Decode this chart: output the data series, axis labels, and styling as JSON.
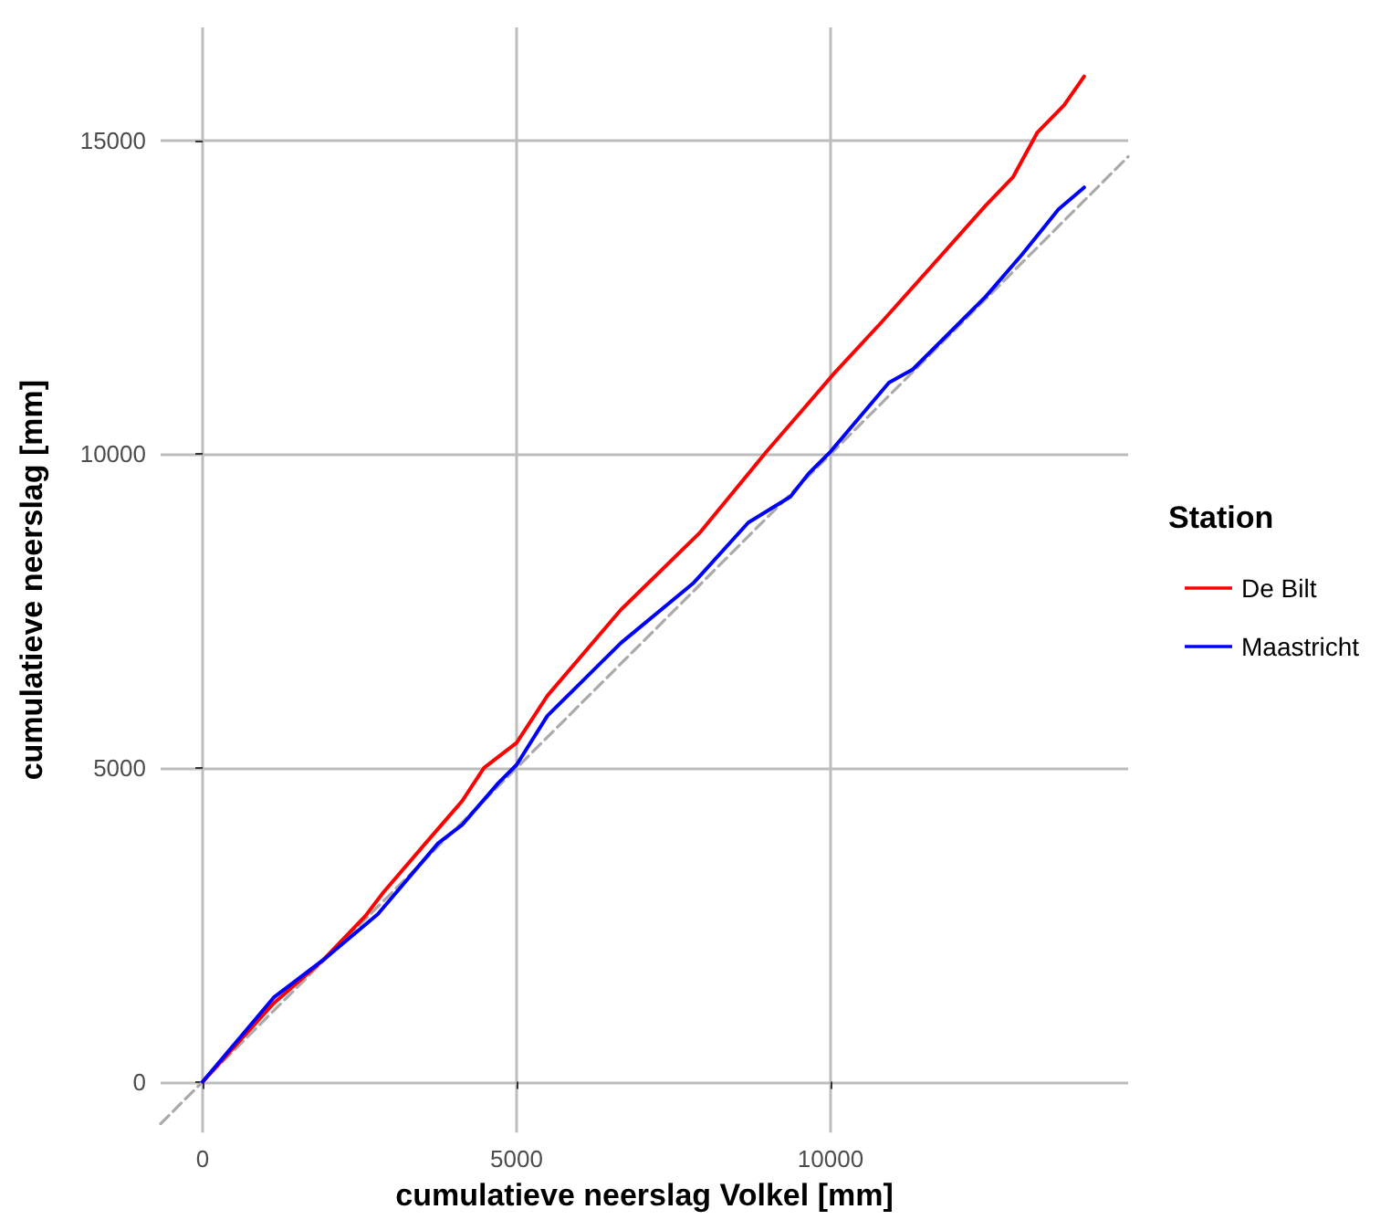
{
  "chart_data": {
    "type": "line",
    "xlabel": "cumulatieve neerslag Volkel [mm]",
    "ylabel": "cumulatieve neerslag [mm]",
    "legend_title": "Station",
    "legend": "right",
    "grid": true,
    "marker": "none",
    "xlim": [
      -670,
      14740
    ],
    "ylim": [
      -810,
      16800
    ],
    "xticks": [
      0,
      5000,
      10000
    ],
    "yticks": [
      0,
      5000,
      10000,
      15000
    ],
    "series": [
      {
        "name": "De Bilt",
        "color": "#ff0000",
        "x": [
          0,
          1130,
          1920,
          2590,
          2880,
          3550,
          4130,
          4480,
          5000,
          5490,
          6660,
          7910,
          8980,
          9560,
          10060,
          10810,
          12470,
          12910,
          13290,
          13720,
          14040
        ],
        "values": [
          0,
          1250,
          1940,
          2640,
          3020,
          3800,
          4470,
          5000,
          5400,
          6150,
          7520,
          8740,
          10040,
          10710,
          11290,
          12100,
          13960,
          14420,
          15120,
          15560,
          16020
        ]
      },
      {
        "name": "Maastricht",
        "color": "#0000ff",
        "x": [
          0,
          1130,
          1920,
          2790,
          3750,
          4130,
          4710,
          5000,
          5490,
          6660,
          7820,
          8690,
          9360,
          9650,
          10000,
          10930,
          11310,
          12470,
          13050,
          13630,
          14040
        ],
        "values": [
          0,
          1340,
          1940,
          2670,
          3800,
          4090,
          4760,
          5050,
          5830,
          6990,
          7950,
          8910,
          9320,
          9690,
          10040,
          11140,
          11350,
          12510,
          13180,
          13900,
          14250
        ]
      },
      {
        "color": "#aaaaaa",
        "line_style": "dashed",
        "x": [
          -670,
          14740
        ],
        "values": [
          -670,
          14740
        ]
      }
    ]
  }
}
